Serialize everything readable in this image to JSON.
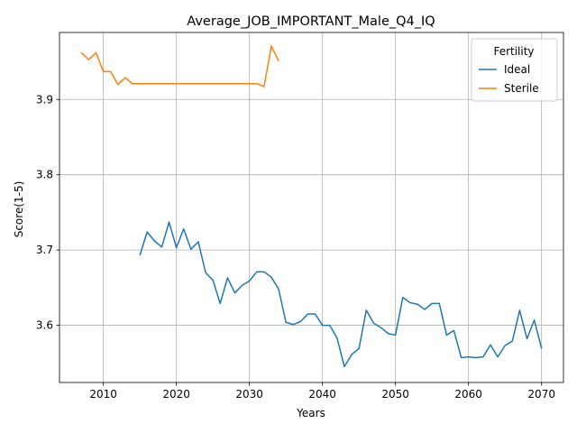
{
  "chart_data": {
    "type": "line",
    "title": "Average_JOB_IMPORTANT_Male_Q4_IQ",
    "xlabel": "Years",
    "ylabel": "Score(1-5)",
    "xlim": [
      2004,
      2073
    ],
    "ylim": [
      3.524,
      3.989
    ],
    "x_ticks": [
      2010,
      2020,
      2030,
      2040,
      2050,
      2060,
      2070
    ],
    "y_ticks": [
      3.6,
      3.7,
      3.8,
      3.9
    ],
    "x_tick_labels": [
      "2010",
      "2020",
      "2030",
      "2040",
      "2050",
      "2060",
      "2070"
    ],
    "y_tick_labels": [
      "3.6",
      "3.7",
      "3.8",
      "3.9"
    ],
    "grid": true,
    "legend": {
      "title": "Fertility",
      "placement": "top-right"
    },
    "series": [
      {
        "name": "Ideal",
        "color": "#1f77b4",
        "x": [
          2015,
          2016,
          2017,
          2018,
          2019,
          2020,
          2021,
          2022,
          2023,
          2024,
          2025,
          2026,
          2027,
          2028,
          2029,
          2030,
          2031,
          2032,
          2033,
          2034,
          2035,
          2036,
          2037,
          2038,
          2039,
          2040,
          2041,
          2042,
          2043,
          2044,
          2045,
          2046,
          2047,
          2048,
          2049,
          2050,
          2051,
          2052,
          2053,
          2054,
          2055,
          2056,
          2057,
          2058,
          2059,
          2060,
          2061,
          2062,
          2063,
          2064,
          2065,
          2066,
          2067,
          2068,
          2069,
          2070
        ],
        "y": [
          3.693,
          3.724,
          3.712,
          3.704,
          3.737,
          3.703,
          3.728,
          3.701,
          3.711,
          3.67,
          3.66,
          3.629,
          3.663,
          3.643,
          3.653,
          3.659,
          3.671,
          3.671,
          3.664,
          3.648,
          3.604,
          3.601,
          3.605,
          3.615,
          3.615,
          3.6,
          3.6,
          3.583,
          3.545,
          3.561,
          3.569,
          3.62,
          3.603,
          3.597,
          3.589,
          3.587,
          3.637,
          3.63,
          3.628,
          3.621,
          3.629,
          3.629,
          3.587,
          3.593,
          3.557,
          3.558,
          3.557,
          3.558,
          3.574,
          3.558,
          3.573,
          3.579,
          3.62,
          3.582,
          3.607,
          3.569
        ]
      },
      {
        "name": "Sterile",
        "color": "#ff7f0e",
        "x": [
          2007,
          2008,
          2009,
          2010,
          2011,
          2012,
          2013,
          2014,
          2015,
          2016,
          2017,
          2018,
          2019,
          2020,
          2021,
          2022,
          2023,
          2024,
          2025,
          2026,
          2027,
          2028,
          2029,
          2030,
          2031,
          2032,
          2033,
          2034
        ],
        "y": [
          3.962,
          3.953,
          3.962,
          3.937,
          3.937,
          3.92,
          3.929,
          3.921,
          3.921,
          3.921,
          3.921,
          3.921,
          3.921,
          3.921,
          3.921,
          3.921,
          3.921,
          3.921,
          3.921,
          3.921,
          3.921,
          3.921,
          3.921,
          3.921,
          3.921,
          3.917,
          3.971,
          3.951
        ]
      }
    ]
  }
}
